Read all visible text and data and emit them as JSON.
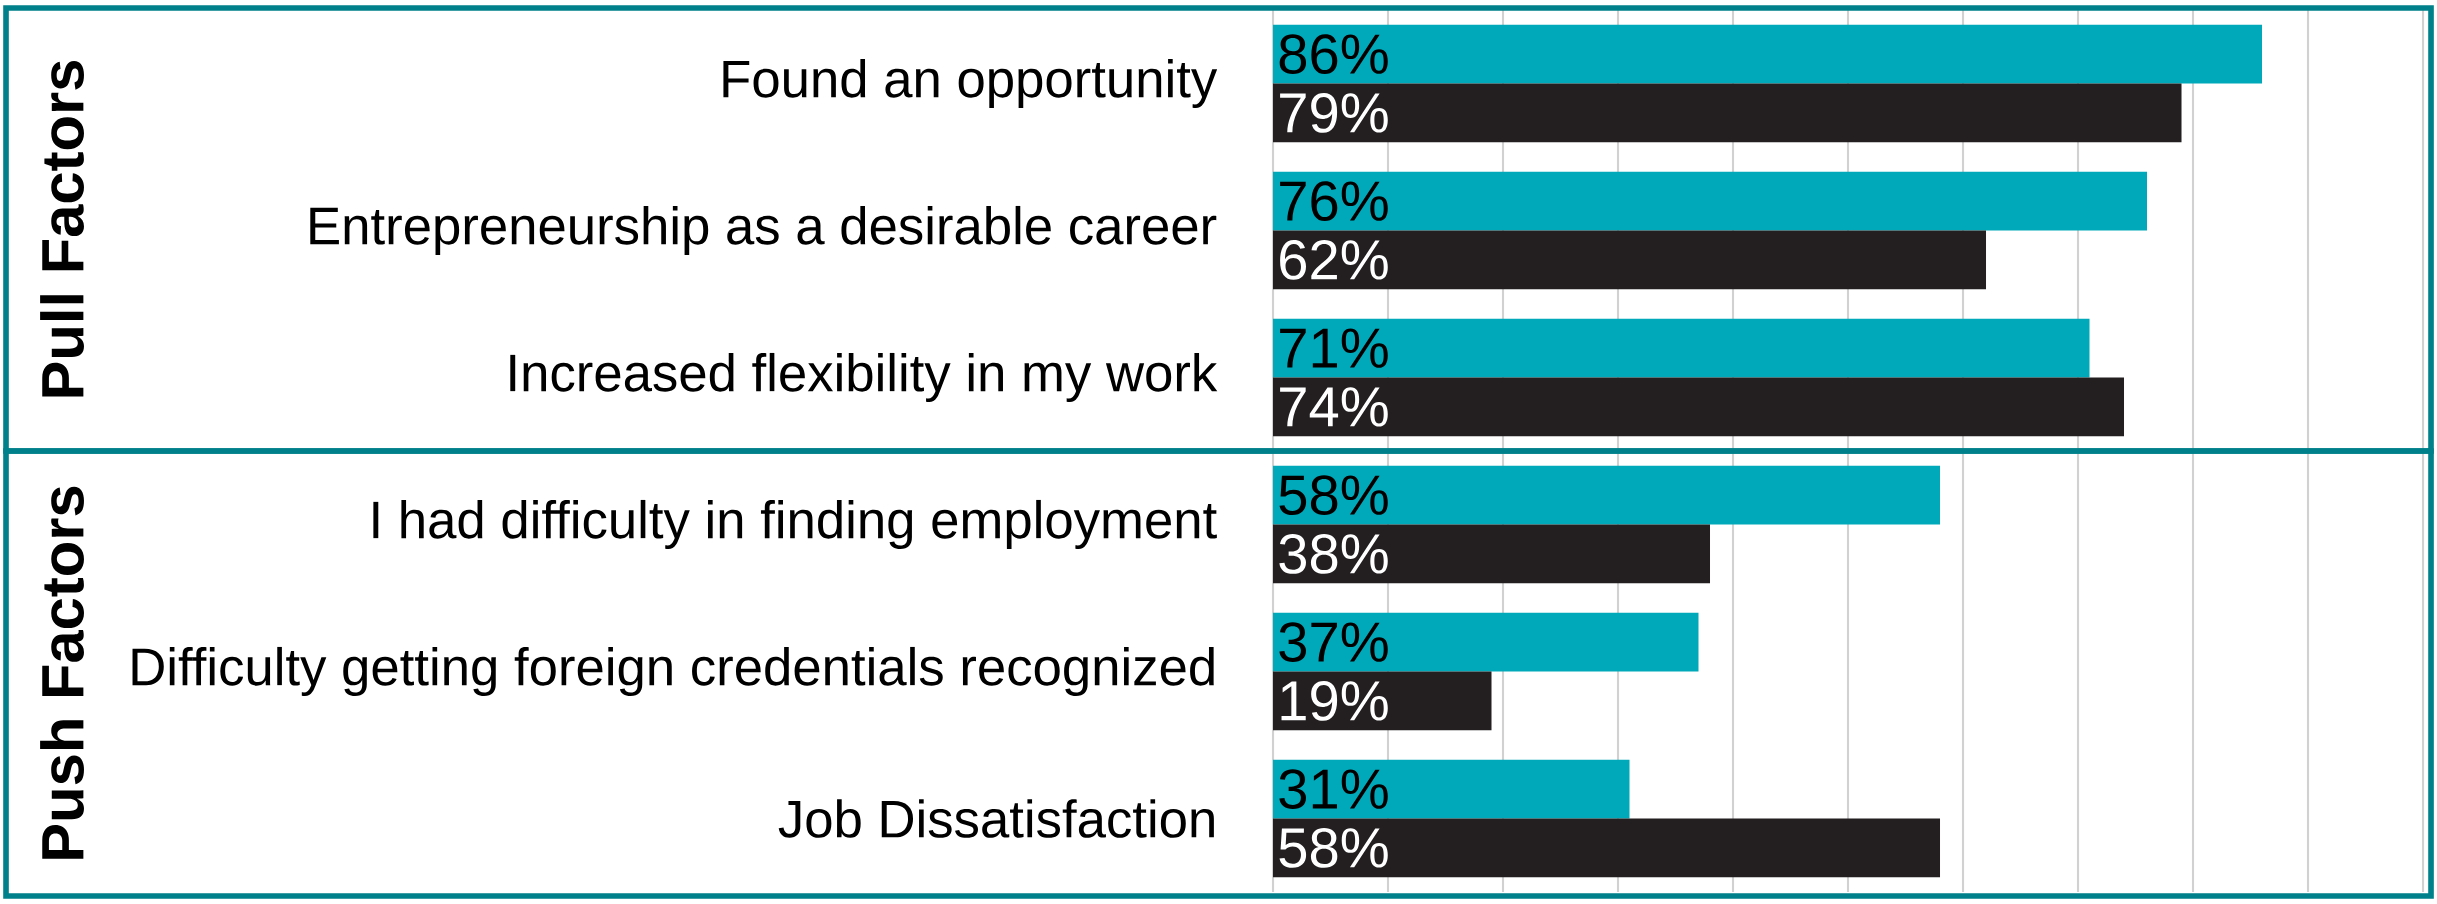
{
  "chart_data": {
    "type": "bar",
    "orientation": "horizontal",
    "categories": [
      "Found an opportunity",
      "Entrepreneurship as a desirable career",
      "Increased flexibility in my work",
      "I had difficulty in finding employment",
      "Difficulty getting foreign credentials recognized",
      "Job Dissatisfaction"
    ],
    "series": [
      {
        "color": "#00a9b9",
        "values": [
          86,
          76,
          71,
          58,
          37,
          31
        ],
        "value_labels": [
          "86%",
          "76%",
          "71%",
          "58%",
          "37%",
          "31%"
        ]
      },
      {
        "color": "#231f20",
        "values": [
          79,
          62,
          74,
          38,
          19,
          58
        ],
        "value_labels": [
          "79%",
          "62%",
          "74%",
          "38%",
          "19%",
          "58%"
        ]
      }
    ],
    "xlim": [
      0,
      100
    ],
    "xticks": [
      {
        "value": 0,
        "label": null
      },
      {
        "value": 10,
        "label": null
      },
      {
        "value": 20,
        "label": null
      },
      {
        "value": 30,
        "label": null
      },
      {
        "value": 40,
        "label": null
      },
      {
        "value": 50,
        "label": null
      },
      {
        "value": 60,
        "label": null
      },
      {
        "value": 70,
        "label": null
      },
      {
        "value": 80,
        "label": null
      },
      {
        "value": 90,
        "label": null
      },
      {
        "value": 100,
        "label": null
      }
    ],
    "grid": "x",
    "tick_labels": "y",
    "annotations": [
      "Pull Factors",
      "Push Factors"
    ]
  }
}
